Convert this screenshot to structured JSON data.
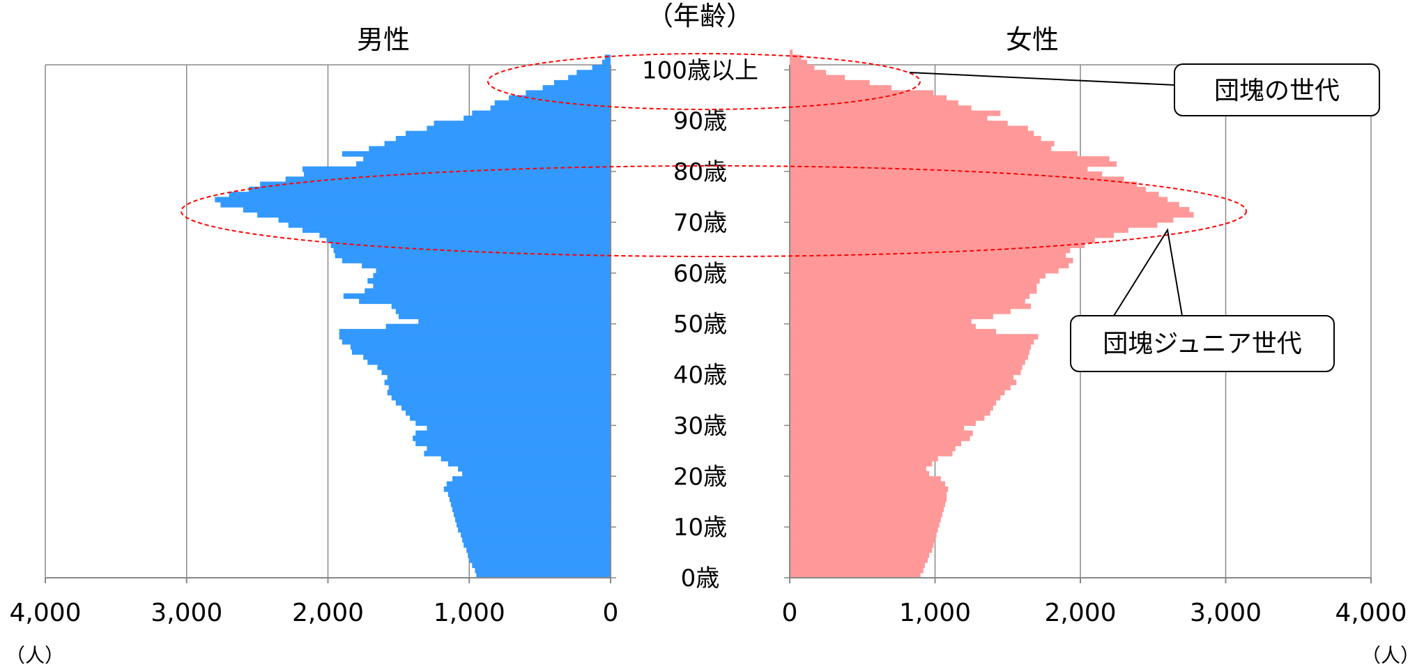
{
  "chart_data": {
    "type": "bar",
    "orientation": "horizontal",
    "subtype": "population-pyramid",
    "yaxis_title": "（年齢）",
    "age_labels": [
      "0歳",
      "10歳",
      "20歳",
      "30歳",
      "40歳",
      "50歳",
      "60歳",
      "70歳",
      "80歳",
      "90歳",
      "100歳以上"
    ],
    "age_range": [
      0,
      100
    ],
    "xlim": [
      0,
      4000
    ],
    "x_tick_labels": [
      "0",
      "1,000",
      "2,000",
      "3,000",
      "4,000"
    ],
    "unit_label": "（人）",
    "grid": true,
    "series": [
      {
        "name": "男性",
        "color": "#3399FF",
        "side": "left",
        "values": [
          950,
          960,
          980,
          1000,
          1010,
          1020,
          1040,
          1050,
          1060,
          1080,
          1090,
          1100,
          1110,
          1120,
          1130,
          1140,
          1150,
          1180,
          1160,
          1120,
          1050,
          1080,
          1150,
          1200,
          1320,
          1300,
          1380,
          1400,
          1380,
          1300,
          1380,
          1420,
          1450,
          1480,
          1520,
          1550,
          1580,
          1570,
          1600,
          1580,
          1620,
          1650,
          1720,
          1750,
          1830,
          1840,
          1900,
          1920,
          1920,
          1590,
          1360,
          1500,
          1520,
          1550,
          1780,
          1890,
          1740,
          1680,
          1720,
          1680,
          1660,
          1760,
          1900,
          1950,
          1960,
          1980,
          2010,
          2060,
          2180,
          2280,
          2350,
          2500,
          2600,
          2760,
          2800,
          2700,
          2560,
          2480,
          2300,
          2170,
          2180,
          1800,
          1750,
          1900,
          1710,
          1600,
          1520,
          1450,
          1300,
          1250,
          1040,
          980,
          850,
          820,
          720,
          600,
          480,
          400,
          300,
          240,
          130,
          60,
          40,
          0,
          0
        ],
        "values_100plus_note": ""
      },
      {
        "name": "女性",
        "color": "#FF9999",
        "side": "right",
        "values": [
          900,
          920,
          930,
          950,
          960,
          980,
          990,
          1000,
          1010,
          1020,
          1030,
          1040,
          1050,
          1060,
          1070,
          1080,
          1080,
          1090,
          1070,
          1040,
          960,
          940,
          980,
          1020,
          1120,
          1140,
          1180,
          1240,
          1260,
          1200,
          1280,
          1340,
          1380,
          1400,
          1420,
          1450,
          1480,
          1520,
          1560,
          1540,
          1590,
          1600,
          1620,
          1640,
          1650,
          1660,
          1680,
          1710,
          1420,
          1280,
          1250,
          1400,
          1520,
          1660,
          1620,
          1650,
          1700,
          1700,
          1720,
          1760,
          1850,
          1920,
          1950,
          1900,
          1930,
          2030,
          2100,
          2230,
          2330,
          2530,
          2640,
          2780,
          2750,
          2680,
          2600,
          2540,
          2450,
          2390,
          2300,
          2150,
          2050,
          2250,
          2200,
          1980,
          1800,
          1820,
          1730,
          1680,
          1640,
          1500,
          1360,
          1450,
          1250,
          1160,
          1080,
          990,
          700,
          550,
          380,
          250,
          170,
          120,
          80,
          20,
          0
        ],
        "values_100plus_note": ""
      }
    ]
  },
  "headers": {
    "male_title": "男性",
    "female_title": "女性",
    "age_axis_title": "（年齢）",
    "unit_left": "（人）",
    "unit_right": "（人）"
  },
  "annotations": [
    {
      "label": "団塊の世代",
      "age_center": 96,
      "age_span": [
        90,
        100
      ]
    },
    {
      "label": "団塊ジュニア世代",
      "age_center": 71,
      "age_span": [
        63,
        80
      ]
    }
  ]
}
